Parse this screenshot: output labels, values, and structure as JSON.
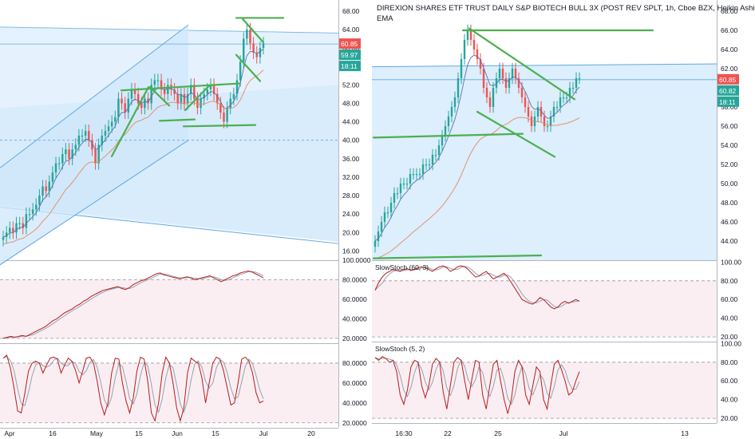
{
  "colors": {
    "up": "#26a69a",
    "down": "#ef5350",
    "channel_fill": "#cfe7fb",
    "channel_line": "#5fa8e6",
    "trend": "#4caf50",
    "k_line": "#b71c1c",
    "d_line": "#90a4ae",
    "osc_bg": "#fbeef3",
    "ema_fast": "#5b6fa8",
    "ema_slow": "#e08a5f",
    "last_price": "#ef5350",
    "timer": "#26a69a"
  },
  "left_chart": {
    "price_axis": [
      "68.00",
      "64.00",
      "60.00",
      "56.00",
      "52.00",
      "48.00",
      "44.00",
      "40.00",
      "36.00",
      "32.00",
      "28.00",
      "24.00",
      "20.00",
      "16.00"
    ],
    "tags": {
      "last_price": "60.85",
      "second_price": "59.97",
      "countdown": "18:11"
    },
    "osc1_axis": [
      "100.0000",
      "80.0000",
      "60.0000",
      "40.0000",
      "20.0000"
    ],
    "osc2_axis": [
      "80.0000",
      "60.0000",
      "40.0000",
      "20.0000"
    ],
    "time_axis": [
      "Apr",
      "16",
      "May",
      "15",
      "Jun",
      "15",
      "Jul",
      "20"
    ]
  },
  "right_chart": {
    "title": "DIREXION SHARES ETF TRUST DAILY S&P BIOTECH BULL 3X (POST REV SPLT, 1h, Cboe BZX, Heikin Ashi",
    "indicator": "EMA",
    "price_axis": [
      "68.00",
      "66.00",
      "64.00",
      "62.00",
      "60.00",
      "58.00",
      "56.00",
      "54.00",
      "52.00",
      "50.00",
      "48.00",
      "46.00",
      "44.00"
    ],
    "tags": {
      "last_price": "60.85",
      "second_price": "60.82",
      "countdown": "18:11"
    },
    "osc1_label": "SlowStoch (60, 3)",
    "osc1_axis": [
      "100.00",
      "80.00",
      "60.00",
      "40.00",
      "20.00"
    ],
    "osc2_label": "SlowStoch (5, 2)",
    "osc2_axis": [
      "100.00",
      "80.00",
      "60.00",
      "40.00",
      "20.00"
    ],
    "time_axis": [
      "16:30",
      "22",
      "25",
      "Jul",
      "13"
    ]
  },
  "chart_data": [
    {
      "type": "candlestick",
      "ylim": [
        14,
        69
      ],
      "yticks": [
        68,
        64,
        60,
        56,
        52,
        48,
        44,
        40,
        36,
        32,
        28,
        24,
        20,
        16
      ],
      "x_labels": [
        "Apr",
        "16",
        "May",
        "15",
        "Jun",
        "15",
        "Jul",
        "20"
      ],
      "last_price": 60.85,
      "series": [
        {
          "name": "price",
          "close": [
            19,
            20,
            21,
            20,
            22,
            22,
            21,
            24,
            24,
            25,
            26,
            28,
            30,
            29,
            31,
            33,
            35,
            35,
            37,
            38,
            36,
            38,
            39,
            41,
            41,
            42,
            40,
            38,
            35,
            39,
            41,
            42,
            43,
            44,
            45,
            49,
            48,
            46,
            49,
            51,
            50,
            48,
            47,
            49,
            48,
            52,
            53,
            53,
            51,
            50,
            52,
            51,
            50,
            48,
            50,
            48,
            50,
            52,
            49,
            47,
            49,
            50,
            51,
            52,
            50,
            48,
            46,
            44,
            47,
            49,
            50,
            53,
            57,
            62,
            64,
            61,
            59,
            58,
            60,
            61
          ]
        }
      ],
      "oscillators": [
        {
          "ylim": [
            15,
            100
          ],
          "k": [
            20,
            21,
            22,
            21,
            22,
            23,
            22,
            24,
            26,
            28,
            30,
            32,
            35,
            38,
            40,
            43,
            46,
            48,
            50,
            53,
            55,
            58,
            60,
            63,
            65,
            67,
            69,
            70,
            71,
            72,
            73,
            71,
            70,
            72,
            75,
            77,
            79,
            80,
            82,
            84,
            86,
            87,
            85,
            84,
            83,
            82,
            81,
            82,
            83,
            82,
            80,
            81,
            82,
            83,
            84,
            82,
            80,
            78,
            80,
            82,
            84,
            85,
            87,
            88,
            89,
            88,
            86,
            84,
            82
          ]
        },
        {
          "ylim": [
            15,
            100
          ],
          "k": [
            85,
            88,
            75,
            55,
            32,
            30,
            50,
            72,
            80,
            82,
            80,
            70,
            78,
            85,
            86,
            84,
            70,
            78,
            85,
            82,
            73,
            60,
            72,
            85,
            86,
            80,
            62,
            40,
            28,
            40,
            70,
            85,
            84,
            60,
            42,
            30,
            45,
            72,
            86,
            84,
            62,
            30,
            22,
            40,
            70,
            86,
            80,
            60,
            35,
            22,
            35,
            70,
            85,
            82,
            80,
            65,
            40,
            60,
            80,
            86,
            84,
            72,
            55,
            38,
            40,
            60,
            84,
            86,
            82,
            70,
            50,
            40,
            42
          ]
        }
      ]
    },
    {
      "type": "candlestick",
      "ylim": [
        42,
        68.5
      ],
      "yticks": [
        68,
        66,
        64,
        62,
        60,
        58,
        56,
        54,
        52,
        50,
        48,
        46,
        44
      ],
      "x_labels": [
        "16:30",
        "22",
        "25",
        "Jul",
        "13"
      ],
      "last_price": 60.85,
      "series": [
        {
          "name": "price",
          "close": [
            44,
            45,
            46,
            47,
            47,
            48,
            49,
            49,
            50,
            50,
            50,
            51,
            51,
            51,
            51,
            52,
            52,
            52,
            53,
            53,
            54,
            55,
            56,
            57,
            58,
            59,
            61,
            63,
            65,
            66,
            65,
            64,
            63,
            62,
            60,
            59,
            58,
            60,
            61,
            62,
            61,
            60,
            61,
            62,
            61,
            60,
            59,
            58,
            57,
            56,
            57,
            58,
            57,
            56,
            56,
            57,
            58,
            58,
            59,
            59,
            59,
            60,
            60,
            61,
            61
          ]
        }
      ],
      "oscillators": [
        {
          "ylim": [
            15,
            102
          ],
          "k": [
            70,
            78,
            84,
            88,
            90,
            92,
            91,
            90,
            92,
            93,
            91,
            92,
            94,
            95,
            94,
            92,
            90,
            93,
            95,
            96,
            94,
            90,
            92,
            95,
            96,
            95,
            92,
            88,
            84,
            85,
            88,
            90,
            86,
            82,
            84,
            86,
            88,
            84,
            78,
            72,
            66,
            60,
            58,
            56,
            55,
            58,
            62,
            60,
            56,
            52,
            50,
            52,
            56,
            58,
            56,
            58,
            60,
            58
          ]
        },
        {
          "ylim": [
            15,
            102
          ],
          "k": [
            85,
            82,
            86,
            84,
            80,
            82,
            70,
            45,
            35,
            50,
            75,
            82,
            80,
            55,
            42,
            55,
            78,
            84,
            80,
            48,
            30,
            55,
            80,
            85,
            82,
            60,
            40,
            62,
            82,
            80,
            45,
            30,
            55,
            78,
            82,
            60,
            40,
            25,
            40,
            70,
            82,
            75,
            45,
            35,
            55,
            75,
            70,
            40,
            30,
            55,
            78,
            82,
            72,
            60,
            45,
            48,
            60,
            70
          ]
        }
      ]
    }
  ]
}
